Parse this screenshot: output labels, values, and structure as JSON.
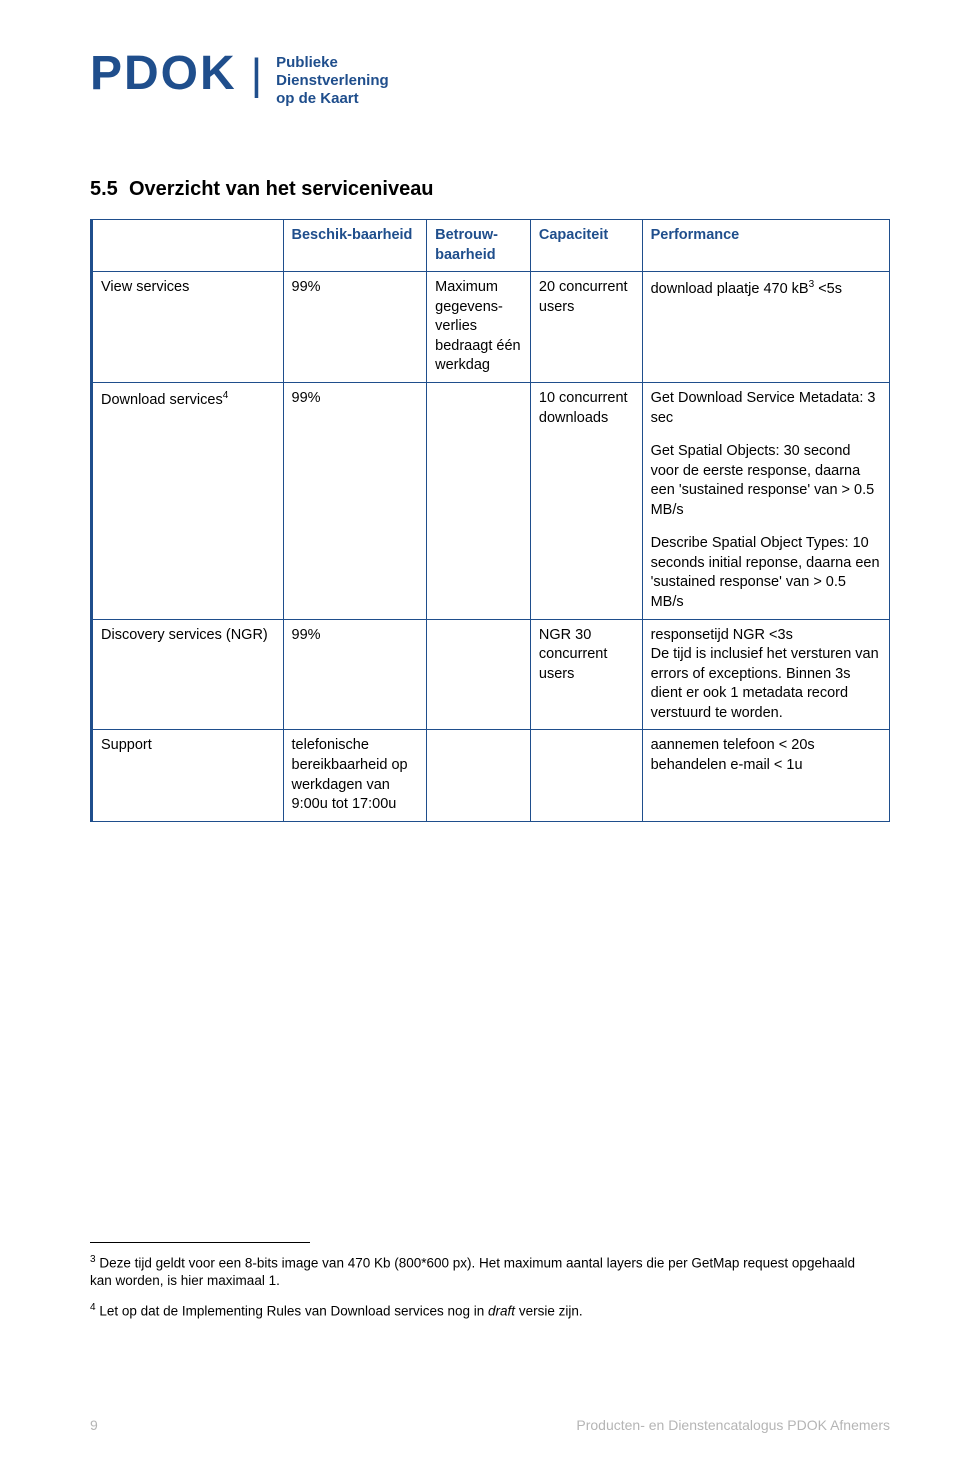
{
  "logo": {
    "main": "PDOK",
    "sub_line1": "Publieke",
    "sub_line2": "Dienstverlening",
    "sub_line3": "op de Kaart"
  },
  "section": {
    "number": "5.5",
    "title": "Overzicht van het serviceniveau"
  },
  "table": {
    "headers": {
      "col1": "",
      "col2": "Beschik-baarheid",
      "col3": "Betrouw-baarheid",
      "col4": "Capaciteit",
      "col5": "Performance"
    },
    "rows": [
      {
        "service": "View services",
        "availability": "99%",
        "reliability": "Maximum gegevens-verlies bedraagt één werkdag",
        "capacity": "20 concurrent users",
        "performance": [
          "download plaatje 470 kB3 <5s"
        ],
        "perf_sup": {
          "0": {
            "pos": 25,
            "text": "3"
          }
        }
      },
      {
        "service": "Download services4",
        "service_sup": {
          "pos": 17,
          "text": "4"
        },
        "availability": "99%",
        "reliability": "",
        "capacity": "10 concurrent downloads",
        "performance": [
          "Get Download Service Metadata: 3 sec",
          "Get Spatial Objects: 30 second voor de eerste response, daarna een 'sustained response' van > 0.5 MB/s",
          "Describe Spatial Object Types: 10 seconds initial reponse, daarna een 'sustained response' van > 0.5 MB/s"
        ]
      },
      {
        "service": "Discovery services (NGR)",
        "availability": "99%",
        "reliability": "",
        "capacity": "NGR 30 concurrent users",
        "performance": [
          "responsetijd NGR <3s\nDe tijd is inclusief het versturen van errors of exceptions. Binnen 3s dient er ook 1 metadata record verstuurd te worden."
        ]
      },
      {
        "service": "Support",
        "availability": "telefonische bereikbaarheid op werkdagen van 9:00u tot 17:00u",
        "reliability": "",
        "capacity": "",
        "performance": [
          "aannemen telefoon < 20s behandelen e-mail < 1u"
        ]
      }
    ]
  },
  "footnotes": {
    "n3_sup": "3",
    "n3": " Deze tijd geldt voor een 8-bits image van 470 Kb (800*600 px). Het maximum aantal layers die per GetMap request opgehaald kan worden, is hier maximaal 1.",
    "n4_sup": "4",
    "n4_a": " Let op dat de Implementing Rules van Download services nog in ",
    "n4_italic": "draft",
    "n4_b": " versie zijn."
  },
  "footer": {
    "page_number": "9",
    "doc_title": "Producten- en Dienstencatalogus PDOK Afnemers"
  },
  "colors": {
    "brand_blue": "#1f4e8c",
    "text": "#000000",
    "footer_grey": "#b5b5b5",
    "background": "#ffffff"
  }
}
